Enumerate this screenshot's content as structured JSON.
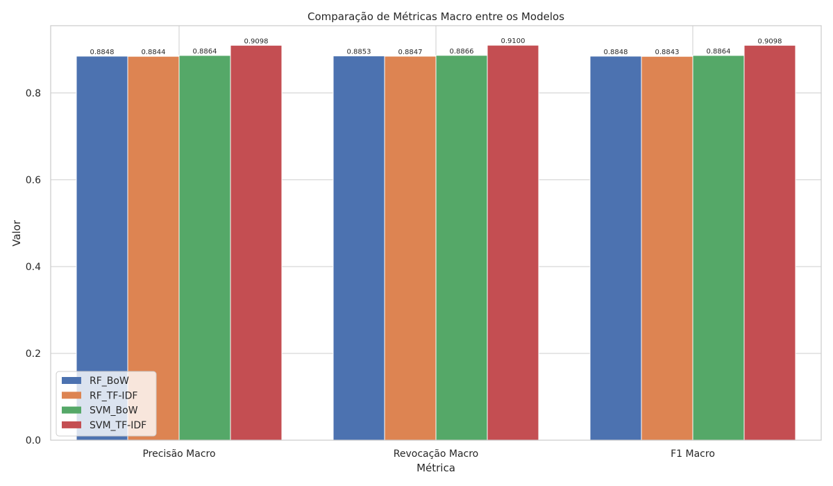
{
  "chart_data": {
    "type": "bar",
    "title": "Comparação de Métricas Macro entre os Modelos",
    "xlabel": "Métrica",
    "ylabel": "Valor",
    "categories": [
      "Precisão Macro",
      "Revocação Macro",
      "F1 Macro"
    ],
    "series": [
      {
        "name": "RF_BoW",
        "color": "#4c72b0",
        "values": [
          0.8848,
          0.8853,
          0.8848
        ]
      },
      {
        "name": "RF_TF-IDF",
        "color": "#dd8452",
        "values": [
          0.8844,
          0.8847,
          0.8843
        ]
      },
      {
        "name": "SVM_BoW",
        "color": "#55a868",
        "values": [
          0.8864,
          0.8866,
          0.8864
        ]
      },
      {
        "name": "SVM_TF-IDF",
        "color": "#c44e52",
        "values": [
          0.9098,
          0.91,
          0.9098
        ]
      }
    ],
    "value_labels": [
      [
        "0.8848",
        "0.8853",
        "0.8848"
      ],
      [
        "0.8844",
        "0.8847",
        "0.8843"
      ],
      [
        "0.8864",
        "0.8866",
        "0.8864"
      ],
      [
        "0.9098",
        "0.9100",
        "0.9098"
      ]
    ],
    "ylim": [
      0,
      0.955
    ],
    "yticks": [
      "0.0",
      "0.2",
      "0.4",
      "0.6",
      "0.8"
    ],
    "ytick_values": [
      0,
      0.2,
      0.4,
      0.6,
      0.8
    ],
    "grid": true,
    "legend_position": "lower-left",
    "style": {
      "grid_color": "#cccccc",
      "axes_edge_color": "#cccccc",
      "text_color": "#262626",
      "background": "#ffffff"
    }
  }
}
